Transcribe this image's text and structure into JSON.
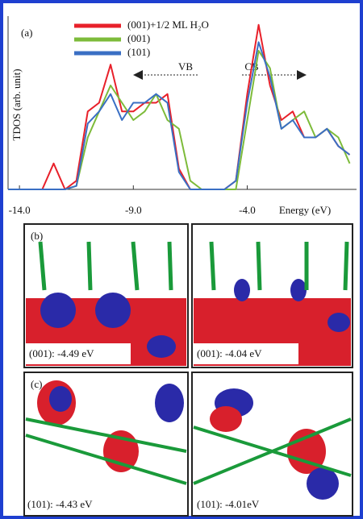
{
  "chart_data": {
    "type": "line",
    "panel_label": "(a)",
    "xlabel": "Energy (eV)",
    "ylabel": "TDOS (arb. unit)",
    "annotations": [
      "VB",
      "CB"
    ],
    "x": [
      -14.5,
      -14,
      -13.5,
      -13,
      -12.5,
      -12,
      -11.5,
      -11,
      -10.5,
      -10,
      -9.5,
      -9,
      -8.5,
      -8,
      -7.5,
      -7,
      -6.5,
      -6,
      -5.5,
      -5,
      -4.5,
      -4,
      -3.5,
      -3,
      -2.5,
      -2,
      -1.5,
      -1,
      -0.5,
      0,
      0.5
    ],
    "series": [
      {
        "name": "(001)+1/2 ML H₂O",
        "color": "#e8202a",
        "values": [
          0,
          0,
          0,
          0,
          0.15,
          0,
          0.05,
          0.45,
          0.5,
          0.72,
          0.45,
          0.45,
          0.5,
          0.5,
          0.55,
          0.12,
          0,
          0,
          0,
          0,
          0.05,
          0.55,
          0.95,
          0.6,
          0.4,
          0.45,
          0.3,
          0.3,
          0.35,
          0.25,
          0.2
        ]
      },
      {
        "name": "(001)",
        "color": "#7dbb3a",
        "values": [
          0,
          0,
          0,
          0,
          0,
          0,
          0.02,
          0.3,
          0.45,
          0.6,
          0.5,
          0.4,
          0.45,
          0.55,
          0.4,
          0.35,
          0.05,
          0,
          0,
          0,
          0,
          0.4,
          0.8,
          0.7,
          0.35,
          0.4,
          0.45,
          0.3,
          0.35,
          0.3,
          0.15
        ]
      },
      {
        "name": "(101)",
        "color": "#3a6fc4",
        "values": [
          0,
          0,
          0,
          0,
          0,
          0,
          0.02,
          0.38,
          0.45,
          0.55,
          0.4,
          0.5,
          0.5,
          0.55,
          0.5,
          0.1,
          0,
          0,
          0,
          0,
          0.05,
          0.5,
          0.85,
          0.65,
          0.35,
          0.4,
          0.3,
          0.3,
          0.35,
          0.25,
          0.2
        ]
      }
    ],
    "xlim": [
      -14.5,
      0.8
    ],
    "ylim": [
      0,
      1
    ],
    "xticks": [
      {
        "value": -14,
        "label": "-14.0"
      },
      {
        "value": -9,
        "label": "-9.0"
      },
      {
        "value": -4,
        "label": "-4.0"
      }
    ]
  },
  "panels": [
    {
      "tag": "(b)",
      "caption": "(001): -4.49 eV"
    },
    {
      "caption": "(001): -4.04 eV"
    },
    {
      "tag": "(c)",
      "caption": "(101): -4.43 eV"
    },
    {
      "caption": "(101): -4.01eV"
    }
  ]
}
